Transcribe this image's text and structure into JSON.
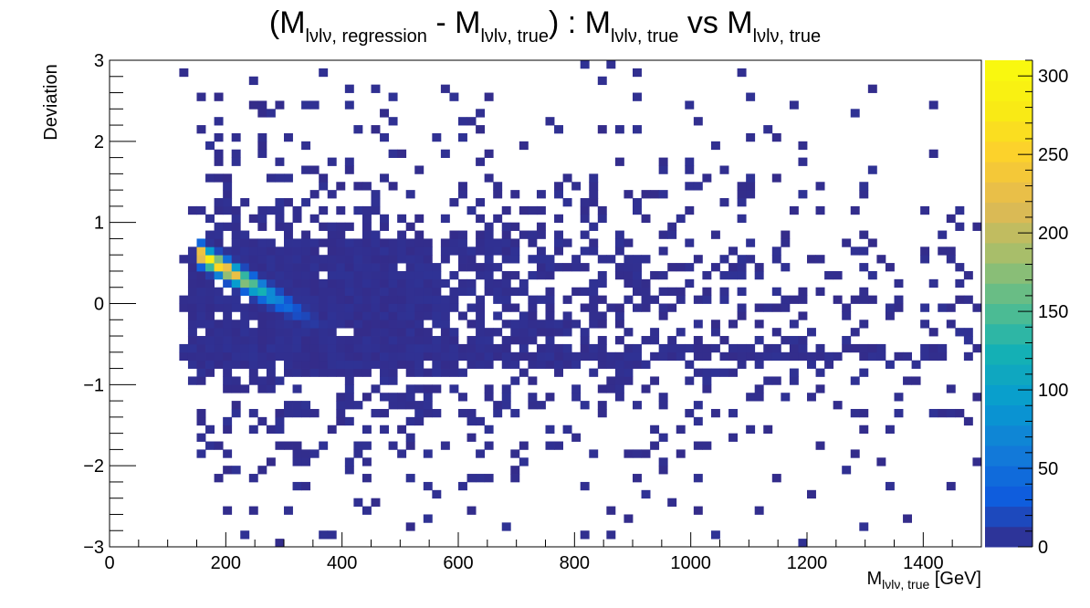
{
  "chart_data": {
    "type": "heatmap",
    "title": {
      "part1_open": "(M",
      "part1_sub": "lνlν, regression",
      "part2": " - M",
      "part2_sub": "lνlν, true",
      "part3": ") : M",
      "part3_sub": "lνlν, true",
      "part4": " vs M",
      "part4_sub": "lνlν, true"
    },
    "xlabel": {
      "main": "M",
      "sub": "lνlν, true",
      "unit": " [GeV]"
    },
    "ylabel": "Deviation",
    "xlim": [
      0,
      1500
    ],
    "ylim": [
      -3,
      3
    ],
    "x_ticks": [
      0,
      200,
      400,
      600,
      800,
      1000,
      1200,
      1400
    ],
    "y_ticks": [
      -3,
      -2,
      -1,
      0,
      1,
      2,
      3
    ],
    "z_ticks": [
      0,
      50,
      100,
      150,
      200,
      250,
      300
    ],
    "zlim": [
      0,
      310
    ],
    "bins": {
      "nx": 100,
      "ny": 60
    },
    "colorscale": "parula",
    "peak": {
      "x": 190,
      "y": 0.18,
      "value": 305
    }
  }
}
